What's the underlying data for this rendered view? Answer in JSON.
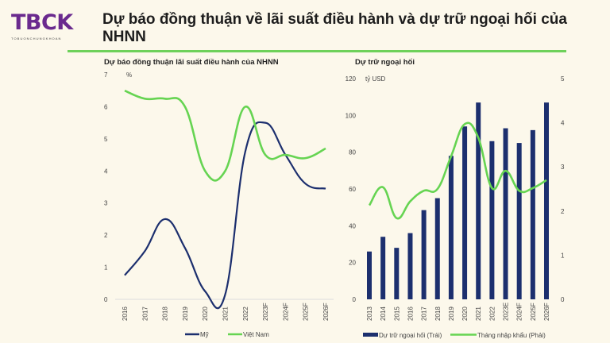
{
  "header": {
    "logo_text": "TBCK",
    "logo_sub": "TOBUONCHUNGKHOAN",
    "title": "Dự báo đồng thuận về lãi suất điều hành và dự trữ ngoại hối của NHNN"
  },
  "colors": {
    "navy": "#1c2f6e",
    "green": "#66d452",
    "accent": "#6a2a8e"
  },
  "chart_data": [
    {
      "type": "line",
      "title": "Dự báo đồng thuận lãi suất điều hành của NHNN",
      "ylabel": "%",
      "ylim": [
        0,
        7
      ],
      "yticks": [
        "0",
        "1",
        "2",
        "3",
        "4",
        "5",
        "6",
        "7"
      ],
      "categories": [
        "2016",
        "2017",
        "2018",
        "2019",
        "2020",
        "2021",
        "2022",
        "2023F",
        "2024F",
        "2025F",
        "2026F"
      ],
      "series": [
        {
          "name": "Mỹ",
          "color": "#1c2f6e",
          "values": [
            0.75,
            1.5,
            2.5,
            1.6,
            0.25,
            0.15,
            4.6,
            5.5,
            4.5,
            3.6,
            3.45
          ]
        },
        {
          "name": "Việt Nam",
          "color": "#66d452",
          "values": [
            6.5,
            6.25,
            6.25,
            6.0,
            4.0,
            4.0,
            6.0,
            4.5,
            4.5,
            4.4,
            4.7
          ]
        }
      ],
      "legend": "bottom"
    },
    {
      "type": "bar+line",
      "title": "Dự trữ ngoại hối",
      "ylabel": "tỷ USD",
      "ylim": [
        0,
        120
      ],
      "y2lim": [
        0,
        5
      ],
      "yticks": [
        "0",
        "20",
        "40",
        "60",
        "80",
        "100",
        "120"
      ],
      "y2ticks": [
        "0",
        "1",
        "2",
        "3",
        "4",
        "5"
      ],
      "categories": [
        "2013",
        "2014",
        "2015",
        "2016",
        "2017",
        "2018",
        "2019",
        "2020",
        "2021",
        "2022",
        "2023E",
        "2024F",
        "2025F",
        "2026F"
      ],
      "series": [
        {
          "name": "Dự trữ ngoại hối (Trái)",
          "type": "bar",
          "axis": "left",
          "color": "#1c2f6e",
          "values": [
            26,
            34,
            28,
            36,
            48.5,
            55,
            78,
            94,
            107,
            86,
            93,
            85,
            92,
            107
          ]
        },
        {
          "name": "Tháng nhập khẩu (Phải)",
          "type": "line",
          "axis": "right",
          "color": "#66d452",
          "values": [
            2.13,
            2.54,
            1.84,
            2.22,
            2.46,
            2.5,
            3.24,
            3.97,
            3.66,
            2.52,
            2.91,
            2.46,
            2.52,
            2.7
          ]
        }
      ],
      "legend": "bottom"
    }
  ]
}
